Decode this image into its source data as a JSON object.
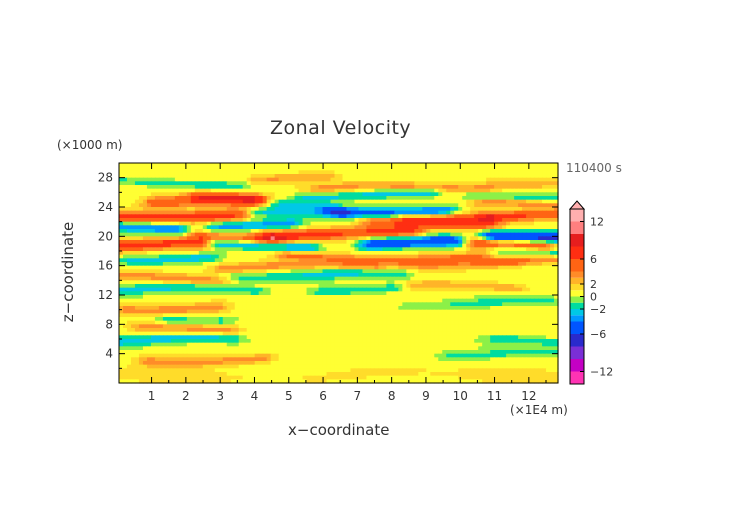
{
  "chart_data": {
    "type": "heatmap",
    "title": "Zonal Velocity",
    "xlabel": "x−coordinate",
    "ylabel": "z−coordinate",
    "x_unit": "(×1E4 m)",
    "y_unit": "(×1000 m)",
    "time_label": "110400 s",
    "xlim": [
      0.05,
      12.85
    ],
    "ylim": [
      0,
      30
    ],
    "x_ticks": [
      1,
      2,
      3,
      4,
      5,
      6,
      7,
      8,
      9,
      10,
      11,
      12
    ],
    "y_ticks": [
      4,
      8,
      12,
      16,
      20,
      24,
      28
    ],
    "colorbar": {
      "ticks": [
        "12",
        "6",
        "2",
        "0",
        "−2",
        "−6",
        "−12"
      ],
      "levels": [
        -14,
        -12,
        -10,
        -8,
        -6,
        -4,
        -3,
        -2,
        -1,
        0,
        1,
        2,
        3,
        4,
        6,
        8,
        10,
        12,
        14
      ],
      "colors": [
        "#ff33b4",
        "#c400c4",
        "#7a2fd6",
        "#2a2acc",
        "#0055ff",
        "#0099ff",
        "#00c8e6",
        "#00dca0",
        "#8cf048",
        "#ffff33",
        "#ffdc2a",
        "#ffb428",
        "#ff8c28",
        "#ff6414",
        "#ff2e12",
        "#e61e1e",
        "#ff7f7f",
        "#ffafaf"
      ]
    },
    "bands": [
      {
        "z": 1.0,
        "amp": 0.6,
        "thick": 1.0,
        "x0": 0,
        "x1": 13
      },
      {
        "z": 3.2,
        "amp": 3.0,
        "thick": 0.7,
        "x0": 1.0,
        "x1": 4.2
      },
      {
        "z": 3.9,
        "amp": -1.8,
        "thick": 0.6,
        "x0": 9.8,
        "x1": 12.8
      },
      {
        "z": 5.8,
        "amp": -3.2,
        "thick": 0.7,
        "x0": 0,
        "x1": 3.3
      },
      {
        "z": 5.6,
        "amp": -2.5,
        "thick": 0.6,
        "x0": 11.2,
        "x1": 12.8
      },
      {
        "z": 7.3,
        "amp": 2.6,
        "thick": 0.6,
        "x0": 0.7,
        "x1": 3.2
      },
      {
        "z": 8.8,
        "amp": -2.2,
        "thick": 0.6,
        "x0": 1.5,
        "x1": 3.0
      },
      {
        "z": 10.3,
        "amp": 3.2,
        "thick": 0.7,
        "x0": 0.3,
        "x1": 2.8
      },
      {
        "z": 10.8,
        "amp": -1.6,
        "thick": 0.6,
        "x0": 8.5,
        "x1": 12.6
      },
      {
        "z": 12.6,
        "amp": -2.6,
        "thick": 0.6,
        "x0": 0.2,
        "x1": 4.0
      },
      {
        "z": 12.8,
        "amp": -2.2,
        "thick": 0.6,
        "x0": 6.0,
        "x1": 8.0
      },
      {
        "z": 13.0,
        "amp": 2.4,
        "thick": 0.6,
        "x0": 8.8,
        "x1": 11.5
      },
      {
        "z": 14.3,
        "amp": 3.0,
        "thick": 0.6,
        "x0": 0.2,
        "x1": 3.0
      },
      {
        "z": 14.6,
        "amp": -2.4,
        "thick": 0.7,
        "x0": 3.3,
        "x1": 8.2
      },
      {
        "z": 15.8,
        "amp": 3.2,
        "thick": 0.6,
        "x0": 3.2,
        "x1": 7.5
      },
      {
        "z": 16.4,
        "amp": 2.6,
        "thick": 0.6,
        "x0": 8.5,
        "x1": 11.5
      },
      {
        "z": 17.0,
        "amp": -2.8,
        "thick": 0.6,
        "x0": 0.4,
        "x1": 2.6
      },
      {
        "z": 17.1,
        "amp": 3.6,
        "thick": 0.6,
        "x0": 5.0,
        "x1": 10.5
      },
      {
        "z": 16.4,
        "amp": 3.0,
        "thick": 0.6,
        "x0": 11.0,
        "x1": 12.8
      },
      {
        "z": 17.8,
        "amp": -3.0,
        "thick": 0.6,
        "x0": 11.3,
        "x1": 12.8
      },
      {
        "z": 18.7,
        "amp": 6.5,
        "thick": 0.8,
        "x0": 0.1,
        "x1": 2.3
      },
      {
        "z": 18.8,
        "amp": -4.0,
        "thick": 0.7,
        "x0": 3.0,
        "x1": 5.5
      },
      {
        "z": 19.0,
        "amp": -6.5,
        "thick": 0.8,
        "x0": 7.5,
        "x1": 9.8
      },
      {
        "z": 18.8,
        "amp": 6.0,
        "thick": 0.8,
        "x0": 10.5,
        "x1": 12.4
      },
      {
        "z": 20.3,
        "amp": 6.0,
        "thick": 0.8,
        "x0": 4.5,
        "x1": 8.5
      },
      {
        "z": 20.0,
        "amp": 4.0,
        "thick": 0.7,
        "x0": 2.5,
        "x1": 4.5
      },
      {
        "z": 20.2,
        "amp": -7.5,
        "thick": 0.8,
        "x0": 11.0,
        "x1": 12.8
      },
      {
        "z": 21.3,
        "amp": -5.0,
        "thick": 0.9,
        "x0": 0.0,
        "x1": 1.6
      },
      {
        "z": 21.6,
        "amp": -4.0,
        "thick": 0.7,
        "x0": 3.0,
        "x1": 5.0
      },
      {
        "z": 21.8,
        "amp": 4.0,
        "thick": 0.7,
        "x0": 7.5,
        "x1": 10.8
      },
      {
        "z": 22.8,
        "amp": 6.5,
        "thick": 0.8,
        "x0": 0.0,
        "x1": 3.5
      },
      {
        "z": 22.6,
        "amp": 5.0,
        "thick": 0.7,
        "x0": 8.5,
        "x1": 10.5
      },
      {
        "z": 22.6,
        "amp": 5.5,
        "thick": 0.7,
        "x0": 11.0,
        "x1": 12.8
      },
      {
        "z": 23.0,
        "amp": -3.0,
        "thick": 0.7,
        "x0": 4.0,
        "x1": 6.5
      },
      {
        "z": 23.6,
        "amp": -5.0,
        "thick": 0.7,
        "x0": 6.5,
        "x1": 9.5
      },
      {
        "z": 24.3,
        "amp": 3.5,
        "thick": 0.6,
        "x0": 10.8,
        "x1": 12.8
      },
      {
        "z": 24.5,
        "amp": 5.5,
        "thick": 0.8,
        "x0": 1.2,
        "x1": 4.0
      },
      {
        "z": 24.4,
        "amp": -2.8,
        "thick": 0.6,
        "x0": 4.5,
        "x1": 6.0
      },
      {
        "z": 25.2,
        "amp": 4.5,
        "thick": 0.6,
        "x0": 2.5,
        "x1": 4.0
      },
      {
        "z": 25.6,
        "amp": -3.0,
        "thick": 0.6,
        "x0": 5.5,
        "x1": 9.0
      },
      {
        "z": 25.3,
        "amp": -2.5,
        "thick": 0.6,
        "x0": 10.5,
        "x1": 12.8
      },
      {
        "z": 26.5,
        "amp": 3.0,
        "thick": 0.6,
        "x0": 8.5,
        "x1": 10.5
      },
      {
        "z": 26.6,
        "amp": 2.6,
        "thick": 0.6,
        "x0": 6.0,
        "x1": 8.0
      },
      {
        "z": 27.3,
        "amp": -2.0,
        "thick": 0.6,
        "x0": 0.0,
        "x1": 3.5
      },
      {
        "z": 27.8,
        "amp": 2.4,
        "thick": 0.6,
        "x0": 4.2,
        "x1": 6.0
      },
      {
        "z": 27.3,
        "amp": 2.2,
        "thick": 0.6,
        "x0": 11.0,
        "x1": 12.6
      }
    ]
  }
}
